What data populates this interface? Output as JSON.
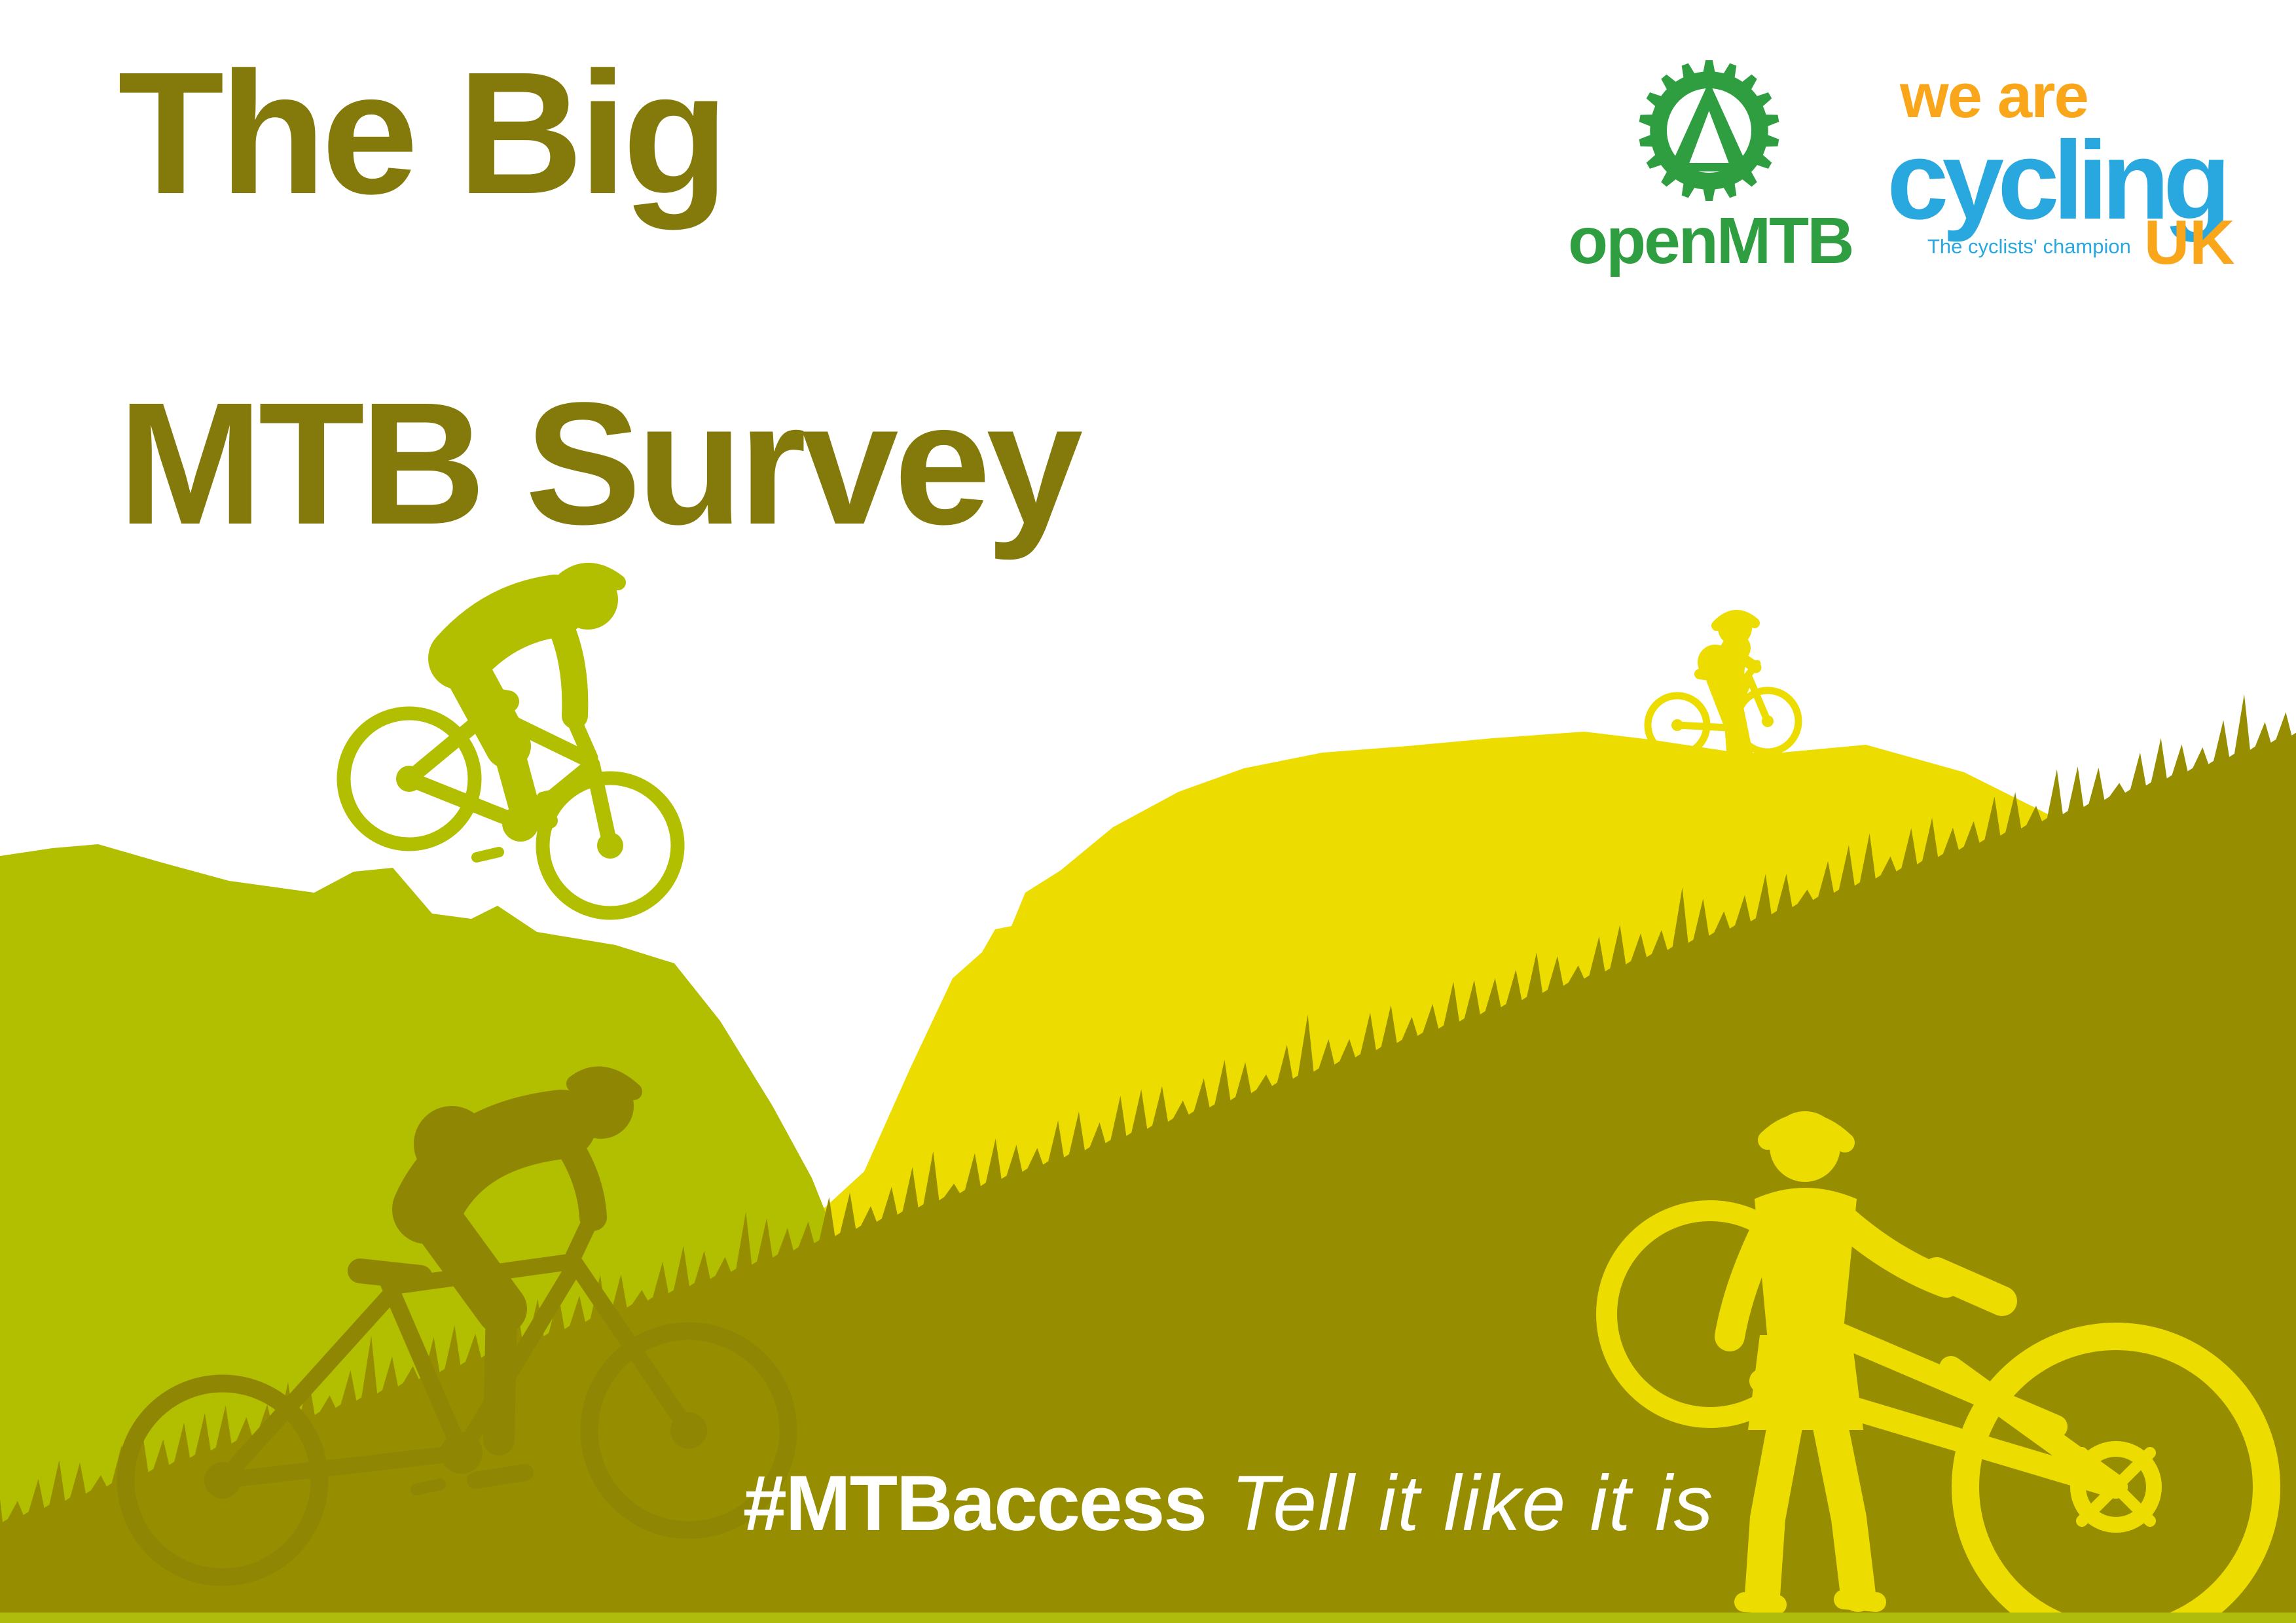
{
  "poster": {
    "title_line1": "The Big",
    "title_line2": "MTB Survey",
    "hashtag": "#MTBaccess",
    "tagline": "Tell it like it is"
  },
  "logos": {
    "openmtb": {
      "wordmark": "openMTB",
      "icon": "gear-mountain-icon",
      "green": "#2E9E41"
    },
    "cycling_uk": {
      "line1": "we are",
      "line2": "cycling",
      "tagline": "The cyclists' champion",
      "line3": "UK",
      "orange": "#F9A61A",
      "blue": "#29A8E0"
    }
  },
  "colors": {
    "sky": "#FFFFFF",
    "title_olive": "#847A0B",
    "hill_chartreuse": "#B2BE00",
    "hill_yellow": "#EDDC00",
    "hill_olive_foreground": "#968E00",
    "figure_dark_olive": "#8F8604",
    "figure_bright_yellow": "#EDDC00",
    "bottom_strip": "#AFBC0C",
    "hashtag_text": "#FFFFFF"
  },
  "scene": {
    "figures": [
      "downhill-rider-silhouette",
      "ridgeline-rider-silhouette",
      "climbing-rider-silhouette",
      "walking-rider-with-bike-silhouette"
    ]
  }
}
